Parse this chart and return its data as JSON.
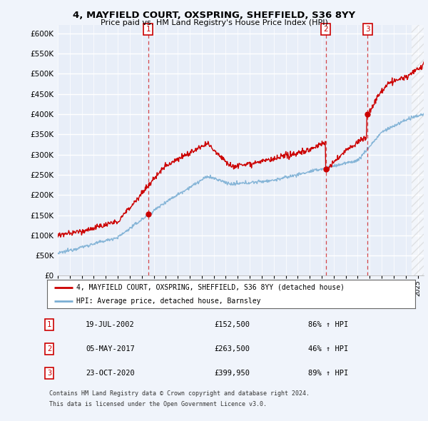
{
  "title": "4, MAYFIELD COURT, OXSPRING, SHEFFIELD, S36 8YY",
  "subtitle": "Price paid vs. HM Land Registry's House Price Index (HPI)",
  "ylim": [
    0,
    620000
  ],
  "yticks": [
    0,
    50000,
    100000,
    150000,
    200000,
    250000,
    300000,
    350000,
    400000,
    450000,
    500000,
    550000,
    600000
  ],
  "xlim_start": 1995.0,
  "xlim_end": 2025.5,
  "background_color": "#f0f4fb",
  "plot_background": "#e8eef8",
  "grid_color": "#d8d8e8",
  "sale_dates": [
    2002.54,
    2017.34,
    2020.81
  ],
  "sale_prices": [
    152500,
    263500,
    399950
  ],
  "sale_labels": [
    "1",
    "2",
    "3"
  ],
  "legend_line1": "4, MAYFIELD COURT, OXSPRING, SHEFFIELD, S36 8YY (detached house)",
  "legend_line2": "HPI: Average price, detached house, Barnsley",
  "table_rows": [
    [
      "1",
      "19-JUL-2002",
      "£152,500",
      "86% ↑ HPI"
    ],
    [
      "2",
      "05-MAY-2017",
      "£263,500",
      "46% ↑ HPI"
    ],
    [
      "3",
      "23-OCT-2020",
      "£399,950",
      "89% ↑ HPI"
    ]
  ],
  "footnote1": "Contains HM Land Registry data © Crown copyright and database right 2024.",
  "footnote2": "This data is licensed under the Open Government Licence v3.0.",
  "red_color": "#cc0000",
  "blue_color": "#7bafd4",
  "hatch_start": 2024.5
}
